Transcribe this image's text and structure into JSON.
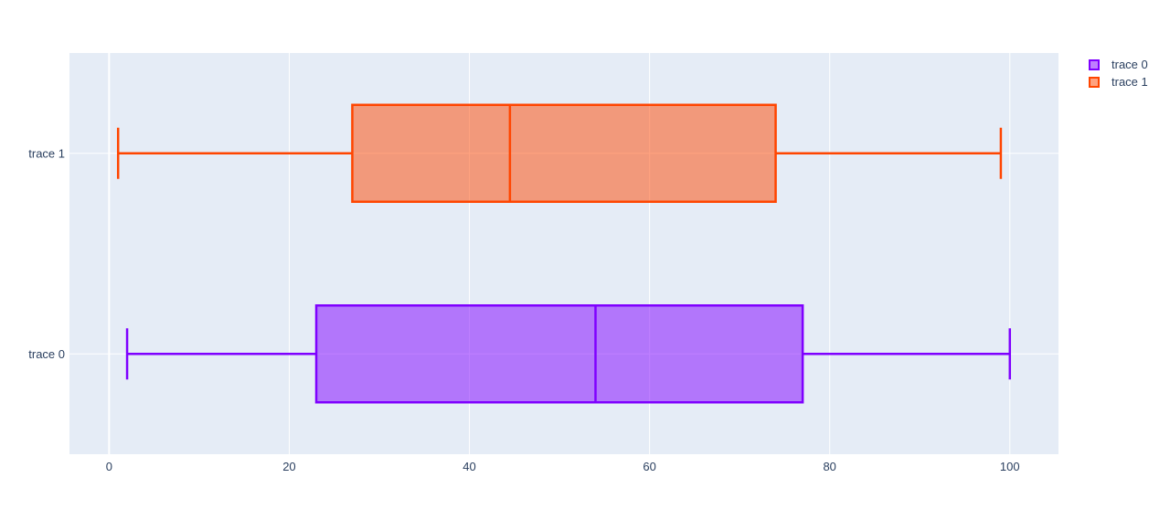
{
  "chart_data": {
    "type": "box",
    "orientation": "horizontal",
    "title": "",
    "xlabel": "",
    "ylabel": "",
    "xaxis": {
      "range": [
        -4.4,
        105.4
      ],
      "ticks": [
        0,
        20,
        40,
        60,
        80,
        100
      ],
      "grid": true
    },
    "yaxis": {
      "categories_bottom_to_top": [
        "trace 0",
        "trace 1"
      ],
      "grid": true
    },
    "legend_position": "top-right",
    "series": [
      {
        "name": "trace 0",
        "color": "#7F00FF",
        "fill": "rgba(127,0,255,0.5)",
        "stats": {
          "min": 2,
          "q1": 23,
          "median": 54,
          "q3": 77,
          "max": 100
        }
      },
      {
        "name": "trace 1",
        "color": "#FF4500",
        "fill": "rgba(255,69,0,0.5)",
        "stats": {
          "min": 1,
          "q1": 27,
          "median": 44.5,
          "q3": 74,
          "max": 99
        }
      }
    ],
    "colors": {
      "plot_bg": "#E5ECF6",
      "grid": "#FFFFFF",
      "text": "#2A3F5F"
    }
  }
}
